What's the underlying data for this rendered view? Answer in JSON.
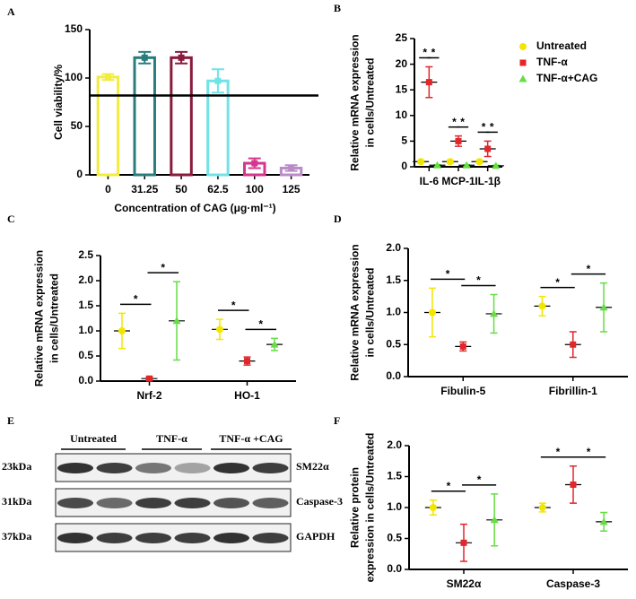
{
  "chart_data": [
    {
      "type": "bar",
      "panel": "A",
      "ylabel": [
        "Cell viability/%"
      ],
      "xlabel": "Concentration of CAG (μg·ml⁻¹)",
      "categories": [
        "0",
        "31.25",
        "50",
        "62.5",
        "100",
        "125"
      ],
      "values": [
        101,
        121,
        121,
        97,
        12,
        7
      ],
      "errors": [
        3,
        6,
        6,
        12,
        5,
        3
      ],
      "colors": [
        "#f2ec3c",
        "#2a7d7d",
        "#8b1a3c",
        "#6fe3e6",
        "#d6368e",
        "#b98cc8"
      ],
      "hline": 82,
      "ylim": [
        0,
        150
      ],
      "yticks": [
        0,
        50,
        100,
        150
      ]
    },
    {
      "type": "dot",
      "panel": "B",
      "ylabel": [
        "Relative  mRNA expression",
        "in cells/Untreated"
      ],
      "categories": [
        "IL-6",
        "MCP-1",
        "IL-1β"
      ],
      "series": [
        {
          "name": "Untreated",
          "color": "#f2e600",
          "values": [
            1,
            1,
            1
          ],
          "errors": [
            0.2,
            0.3,
            0.3
          ]
        },
        {
          "name": "TNF-α",
          "color": "#e2262a",
          "values": [
            16.5,
            5,
            3.5
          ],
          "errors": [
            3,
            1,
            1.5
          ]
        },
        {
          "name": "TNF-α+CAG",
          "color": "#66dd44",
          "values": [
            0.3,
            0.3,
            0.2
          ],
          "errors": [
            0.1,
            0.1,
            0.1
          ]
        }
      ],
      "annotations": [
        "*",
        "*",
        "*",
        "*",
        "*",
        "*"
      ],
      "ylim": [
        0,
        25
      ],
      "yticks": [
        0,
        5,
        10,
        15,
        20,
        25
      ]
    },
    {
      "type": "dot",
      "panel": "C",
      "ylabel": [
        "Relative  mRNA expression",
        "in cells/Untreated"
      ],
      "categories": [
        "Nrf-2",
        "HO-1"
      ],
      "series": [
        {
          "color": "#f2e600",
          "values": [
            1.0,
            1.03
          ],
          "errors": [
            0.35,
            0.2
          ]
        },
        {
          "color": "#e2262a",
          "values": [
            0.05,
            0.4
          ],
          "errors": [
            0.03,
            0.08
          ]
        },
        {
          "color": "#66dd44",
          "values": [
            1.2,
            0.73
          ],
          "errors": [
            0.78,
            0.12
          ]
        }
      ],
      "annotations": [
        "*",
        "*",
        "*",
        "*"
      ],
      "ylim": [
        0,
        2.5
      ],
      "yticks": [
        {
          "value": 0,
          "label": "0.0"
        },
        0.5,
        {
          "value": 1,
          "label": "1.0"
        },
        1.5,
        {
          "value": 2,
          "label": "2.0"
        },
        2.5
      ]
    },
    {
      "type": "dot",
      "panel": "D",
      "ylabel": [
        "Relative  mRNA expression",
        "in cells/Untreated"
      ],
      "categories": [
        "Fibulin-5",
        "Fibrillin-1"
      ],
      "series": [
        {
          "color": "#f2e600",
          "values": [
            1.0,
            1.1
          ],
          "errors": [
            0.38,
            0.15
          ]
        },
        {
          "color": "#e2262a",
          "values": [
            0.47,
            0.5
          ],
          "errors": [
            0.07,
            0.2
          ]
        },
        {
          "color": "#66dd44",
          "values": [
            0.98,
            1.08
          ],
          "errors": [
            0.3,
            0.38
          ]
        }
      ],
      "annotations": [
        "*",
        "*",
        "*",
        "*"
      ],
      "ylim": [
        0,
        2
      ],
      "yticks": [
        {
          "value": 0,
          "label": "0.0"
        },
        0.5,
        {
          "value": 1,
          "label": "1.0"
        },
        1.5,
        {
          "value": 2,
          "label": "2.0"
        }
      ]
    },
    {
      "type": "dot",
      "panel": "F",
      "ylabel": [
        "Relative  protein",
        "expression in cells/Untreated"
      ],
      "categories": [
        "SM22α",
        "Caspase-3"
      ],
      "series": [
        {
          "color": "#f2e600",
          "values": [
            1.0,
            1.0
          ],
          "errors": [
            0.12,
            0.07
          ]
        },
        {
          "color": "#e2262a",
          "values": [
            0.43,
            1.37
          ],
          "errors": [
            0.3,
            0.3
          ]
        },
        {
          "color": "#66dd44",
          "values": [
            0.8,
            0.77
          ],
          "errors": [
            0.42,
            0.15
          ]
        }
      ],
      "annotations": [
        "*",
        "*",
        "*",
        "*"
      ],
      "ylim": [
        0,
        2
      ],
      "yticks": [
        {
          "value": 0,
          "label": "0.0"
        },
        0.5,
        {
          "value": 1,
          "label": "1.0"
        },
        1.5,
        {
          "value": 2,
          "label": "2.0"
        }
      ]
    }
  ],
  "panel_e": {
    "panel": "E",
    "groups": [
      "Untreated",
      "TNF-α",
      "TNF-α +CAG"
    ],
    "rows": [
      {
        "size": "23kDa",
        "protein": "SM22α"
      },
      {
        "size": "31kDa",
        "protein": "Caspase-3"
      },
      {
        "size": "37kDa",
        "protein": "GAPDH"
      }
    ]
  }
}
